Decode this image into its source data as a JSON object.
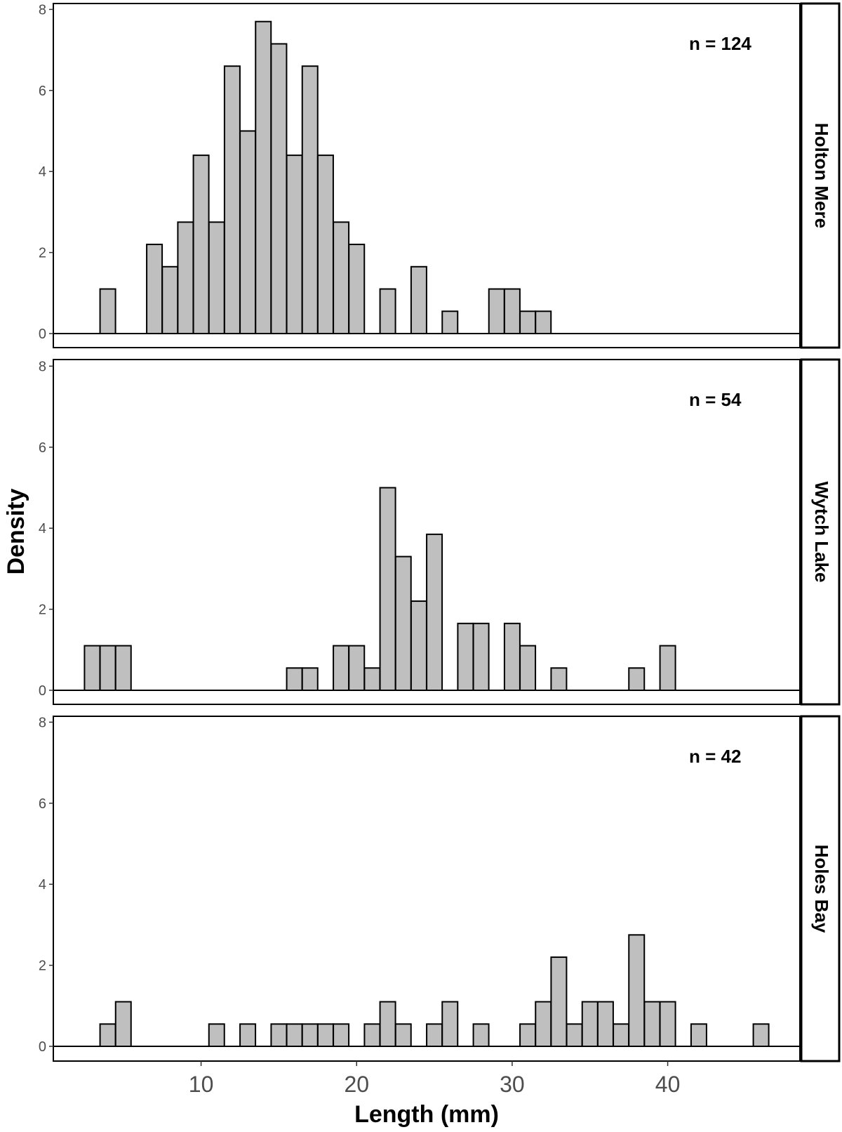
{
  "chart_data": {
    "type": "bar",
    "xlabel": "Length (mm)",
    "ylabel": "Density",
    "xlim": [
      0.5,
      48.5
    ],
    "ylim": [
      0,
      8
    ],
    "x_ticks": [
      10,
      20,
      30,
      40
    ],
    "y_ticks": [
      0,
      2,
      4,
      6,
      8
    ],
    "bar_color": "#bfbfbf",
    "grid": false,
    "panels": [
      {
        "name": "Holton Mere",
        "annotation": "n = 124",
        "bins": [
          {
            "x": 4,
            "y": 1.1
          },
          {
            "x": 7,
            "y": 2.2
          },
          {
            "x": 8,
            "y": 1.65
          },
          {
            "x": 9,
            "y": 2.75
          },
          {
            "x": 10,
            "y": 4.4
          },
          {
            "x": 11,
            "y": 2.75
          },
          {
            "x": 12,
            "y": 6.6
          },
          {
            "x": 13,
            "y": 5.0
          },
          {
            "x": 14,
            "y": 7.7
          },
          {
            "x": 15,
            "y": 7.15
          },
          {
            "x": 16,
            "y": 4.4
          },
          {
            "x": 17,
            "y": 6.6
          },
          {
            "x": 18,
            "y": 4.4
          },
          {
            "x": 19,
            "y": 2.75
          },
          {
            "x": 20,
            "y": 2.2
          },
          {
            "x": 22,
            "y": 1.1
          },
          {
            "x": 24,
            "y": 1.65
          },
          {
            "x": 26,
            "y": 0.55
          },
          {
            "x": 29,
            "y": 1.1
          },
          {
            "x": 30,
            "y": 1.1
          },
          {
            "x": 31,
            "y": 0.55
          },
          {
            "x": 32,
            "y": 0.55
          }
        ]
      },
      {
        "name": "Wytch Lake",
        "annotation": "n = 54",
        "bins": [
          {
            "x": 3,
            "y": 1.1
          },
          {
            "x": 4,
            "y": 1.1
          },
          {
            "x": 5,
            "y": 1.1
          },
          {
            "x": 16,
            "y": 0.55
          },
          {
            "x": 17,
            "y": 0.55
          },
          {
            "x": 19,
            "y": 1.1
          },
          {
            "x": 20,
            "y": 1.1
          },
          {
            "x": 21,
            "y": 0.55
          },
          {
            "x": 22,
            "y": 5.0
          },
          {
            "x": 23,
            "y": 3.3
          },
          {
            "x": 24,
            "y": 2.2
          },
          {
            "x": 25,
            "y": 3.85
          },
          {
            "x": 27,
            "y": 1.65
          },
          {
            "x": 28,
            "y": 1.65
          },
          {
            "x": 30,
            "y": 1.65
          },
          {
            "x": 31,
            "y": 1.1
          },
          {
            "x": 33,
            "y": 0.55
          },
          {
            "x": 38,
            "y": 0.55
          },
          {
            "x": 40,
            "y": 1.1
          }
        ]
      },
      {
        "name": "Holes Bay",
        "annotation": "n = 42",
        "bins": [
          {
            "x": 4,
            "y": 0.55
          },
          {
            "x": 5,
            "y": 1.1
          },
          {
            "x": 11,
            "y": 0.55
          },
          {
            "x": 13,
            "y": 0.55
          },
          {
            "x": 15,
            "y": 0.55
          },
          {
            "x": 16,
            "y": 0.55
          },
          {
            "x": 17,
            "y": 0.55
          },
          {
            "x": 18,
            "y": 0.55
          },
          {
            "x": 19,
            "y": 0.55
          },
          {
            "x": 21,
            "y": 0.55
          },
          {
            "x": 22,
            "y": 1.1
          },
          {
            "x": 23,
            "y": 0.55
          },
          {
            "x": 25,
            "y": 0.55
          },
          {
            "x": 26,
            "y": 1.1
          },
          {
            "x": 28,
            "y": 0.55
          },
          {
            "x": 31,
            "y": 0.55
          },
          {
            "x": 32,
            "y": 1.1
          },
          {
            "x": 33,
            "y": 2.2
          },
          {
            "x": 34,
            "y": 0.55
          },
          {
            "x": 35,
            "y": 1.1
          },
          {
            "x": 36,
            "y": 1.1
          },
          {
            "x": 37,
            "y": 0.55
          },
          {
            "x": 38,
            "y": 2.75
          },
          {
            "x": 39,
            "y": 1.1
          },
          {
            "x": 40,
            "y": 1.1
          },
          {
            "x": 42,
            "y": 0.55
          },
          {
            "x": 46,
            "y": 0.55
          }
        ]
      }
    ]
  }
}
